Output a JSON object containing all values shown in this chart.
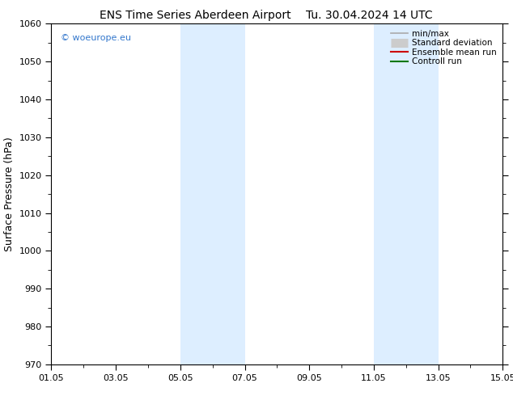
{
  "title_left": "ENS Time Series Aberdeen Airport",
  "title_right": "Tu. 30.04.2024 14 UTC",
  "ylabel": "Surface Pressure (hPa)",
  "ylim": [
    970,
    1060
  ],
  "yticks": [
    970,
    980,
    990,
    1000,
    1010,
    1020,
    1030,
    1040,
    1050,
    1060
  ],
  "xlim_start": 0,
  "xlim_end": 14,
  "xtick_positions": [
    0,
    2,
    4,
    6,
    8,
    10,
    12,
    14
  ],
  "xtick_labels": [
    "01.05",
    "03.05",
    "05.05",
    "07.05",
    "09.05",
    "11.05",
    "13.05",
    "15.05"
  ],
  "shaded_bands": [
    {
      "xmin": 4.0,
      "xmax": 6.0
    },
    {
      "xmin": 10.0,
      "xmax": 12.0
    }
  ],
  "band_color": "#ddeeff",
  "legend_entries": [
    {
      "label": "min/max",
      "color": "#aaaaaa",
      "lw": 1.2,
      "style": "line"
    },
    {
      "label": "Standard deviation",
      "color": "#cccccc",
      "lw": 8,
      "style": "thick"
    },
    {
      "label": "Ensemble mean run",
      "color": "#cc0000",
      "lw": 1.5,
      "style": "line"
    },
    {
      "label": "Controll run",
      "color": "#007700",
      "lw": 1.5,
      "style": "line"
    }
  ],
  "watermark": "© woeurope.eu",
  "watermark_color": "#3377cc",
  "background_color": "#ffffff",
  "title_fontsize": 10,
  "label_fontsize": 9,
  "tick_fontsize": 8,
  "legend_fontsize": 7.5
}
